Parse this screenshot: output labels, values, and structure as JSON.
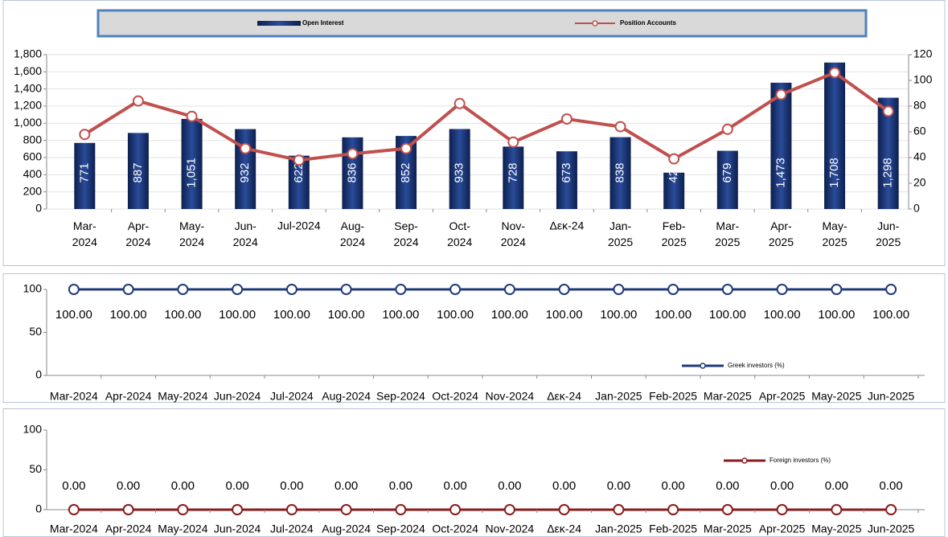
{
  "chart_data": [
    {
      "type": "bar-line",
      "categories": [
        "Mar-2024",
        "Apr-2024",
        "May-2024",
        "Jun-2024",
        "Jul-2024",
        "Aug-2024",
        "Sep-2024",
        "Oct-2024",
        "Nov-2024",
        "Δεκ-24",
        "Jan-2025",
        "Feb-2025",
        "Mar-2025",
        "Apr-2025",
        "May-2025",
        "Jun-2025"
      ],
      "series": [
        {
          "name": "Open Interest",
          "color": "#1f3a7a",
          "type": "bar",
          "values": [
            771,
            887,
            1051,
            932,
            622,
            836,
            852,
            933,
            728,
            673,
            838,
            424,
            679,
            1473,
            1708,
            1298
          ],
          "value_labels": [
            "771",
            "887",
            "1,051",
            "932",
            "622",
            "836",
            "852",
            "933",
            "728",
            "673",
            "838",
            "424",
            "679",
            "1,473",
            "1,708",
            "1,298"
          ]
        },
        {
          "name": "Position Accounts",
          "color": "#c0504d",
          "type": "line",
          "axis": "y2",
          "values": [
            58,
            84,
            72,
            47,
            38,
            43,
            47,
            82,
            52,
            70,
            64,
            39,
            62,
            89,
            106,
            76
          ]
        }
      ],
      "ylim": [
        0,
        1800
      ],
      "yticks": [
        0,
        200,
        400,
        600,
        800,
        {
          "value": 1000,
          "label": "1,000"
        },
        {
          "value": 1200,
          "label": "1,200"
        },
        {
          "value": 1400,
          "label": "1,400"
        },
        {
          "value": 1600,
          "label": "1,600"
        },
        {
          "value": 1800,
          "label": "1,800"
        }
      ],
      "y2lim": [
        0,
        120
      ],
      "y2ticks": [
        0,
        20,
        40,
        60,
        80,
        100,
        120
      ],
      "grid": true,
      "legend": "top"
    },
    {
      "type": "line",
      "categories": [
        "Mar-2024",
        "Apr-2024",
        "May-2024",
        "Jun-2024",
        "Jul-2024",
        "Aug-2024",
        "Sep-2024",
        "Oct-2024",
        "Nov-2024",
        "Δεκ-24",
        "Jan-2025",
        "Feb-2025",
        "Mar-2025",
        "Apr-2025",
        "May-2025",
        "Jun-2025"
      ],
      "series": [
        {
          "name": "Greek investors (%)",
          "color": "#1f3a7a",
          "values": [
            100,
            100,
            100,
            100,
            100,
            100,
            100,
            100,
            100,
            100,
            100,
            100,
            100,
            100,
            100,
            100
          ],
          "value_labels": [
            "100.00",
            "100.00",
            "100.00",
            "100.00",
            "100.00",
            "100.00",
            "100.00",
            "100.00",
            "100.00",
            "100.00",
            "100.00",
            "100.00",
            "100.00",
            "100.00",
            "100.00",
            "100.00"
          ]
        }
      ],
      "ylim": [
        0,
        100
      ],
      "yticks": [
        0,
        50,
        100
      ],
      "legend": "lower right"
    },
    {
      "type": "line",
      "categories": [
        "Mar-2024",
        "Apr-2024",
        "May-2024",
        "Jun-2024",
        "Jul-2024",
        "Aug-2024",
        "Sep-2024",
        "Oct-2024",
        "Nov-2024",
        "Δεκ-24",
        "Jan-2025",
        "Feb-2025",
        "Mar-2025",
        "Apr-2025",
        "May-2025",
        "Jun-2025"
      ],
      "series": [
        {
          "name": "Foreign investors (%)",
          "color": "#8b1a1a",
          "values": [
            0,
            0,
            0,
            0,
            0,
            0,
            0,
            0,
            0,
            0,
            0,
            0,
            0,
            0,
            0,
            0
          ],
          "value_labels": [
            "0.00",
            "0.00",
            "0.00",
            "0.00",
            "0.00",
            "0.00",
            "0.00",
            "0.00",
            "0.00",
            "0.00",
            "0.00",
            "0.00",
            "0.00",
            "0.00",
            "0.00",
            "0.00"
          ]
        }
      ],
      "ylim": [
        0,
        100
      ],
      "yticks": [
        0,
        50,
        100
      ],
      "legend": "upper right"
    }
  ]
}
